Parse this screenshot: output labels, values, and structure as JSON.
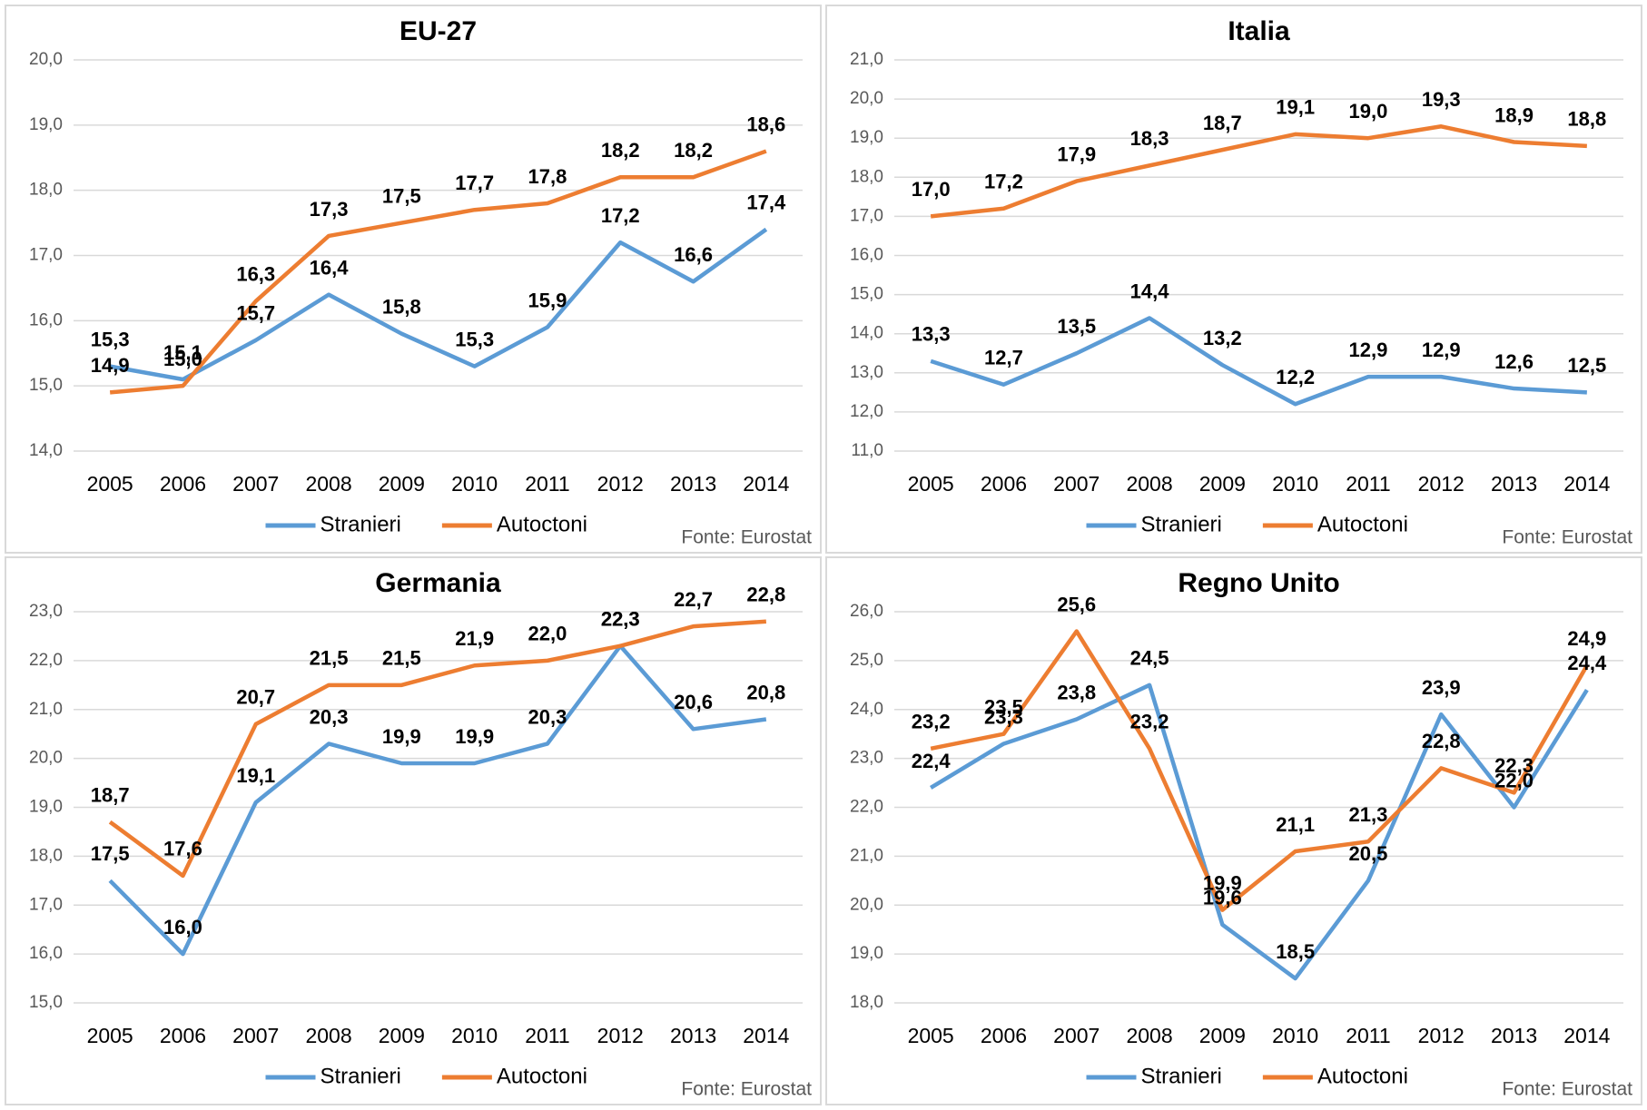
{
  "chart_data": [
    {
      "type": "line",
      "title": "EU-27",
      "source": "Fonte: Eurostat",
      "categories": [
        "2005",
        "2006",
        "2007",
        "2008",
        "2009",
        "2010",
        "2011",
        "2012",
        "2013",
        "2014"
      ],
      "ylim": [
        14,
        20
      ],
      "yticks": [
        {
          "value": 14,
          "label": "14,0"
        },
        {
          "value": 15,
          "label": "15,0"
        },
        {
          "value": 16,
          "label": "16,0"
        },
        {
          "value": 17,
          "label": "17,0"
        },
        {
          "value": 18,
          "label": "18,0"
        },
        {
          "value": 19,
          "label": "19,0"
        },
        {
          "value": 20,
          "label": "20,0"
        }
      ],
      "grid": true,
      "series": [
        {
          "name": "Stranieri",
          "color": "#5b9bd5",
          "values": [
            15.3,
            15.1,
            15.7,
            16.4,
            15.8,
            15.3,
            15.9,
            17.2,
            16.6,
            17.4
          ],
          "value_labels": [
            "15,3",
            "15,1",
            "15,7",
            "16,4",
            "15,8",
            "15,3",
            "15,9",
            "17,2",
            "16,6",
            "17,4"
          ]
        },
        {
          "name": "Autoctoni",
          "color": "#ed7d31",
          "values": [
            14.9,
            15.0,
            16.3,
            17.3,
            17.5,
            17.7,
            17.8,
            18.2,
            18.2,
            18.6
          ],
          "value_labels": [
            "14,9",
            "15,0",
            "16,3",
            "17,3",
            "17,5",
            "17,7",
            "17,8",
            "18,2",
            "18,2",
            "18,6"
          ]
        }
      ]
    },
    {
      "type": "line",
      "title": "Italia",
      "source": "Fonte: Eurostat",
      "categories": [
        "2005",
        "2006",
        "2007",
        "2008",
        "2009",
        "2010",
        "2011",
        "2012",
        "2013",
        "2014"
      ],
      "ylim": [
        11,
        21
      ],
      "yticks": [
        {
          "value": 11,
          "label": "11,0"
        },
        {
          "value": 12,
          "label": "12,0"
        },
        {
          "value": 13,
          "label": "13,0"
        },
        {
          "value": 14,
          "label": "14,0"
        },
        {
          "value": 15,
          "label": "15,0"
        },
        {
          "value": 16,
          "label": "16,0"
        },
        {
          "value": 17,
          "label": "17,0"
        },
        {
          "value": 18,
          "label": "18,0"
        },
        {
          "value": 19,
          "label": "19,0"
        },
        {
          "value": 20,
          "label": "20,0"
        },
        {
          "value": 21,
          "label": "21,0"
        }
      ],
      "grid": true,
      "series": [
        {
          "name": "Stranieri",
          "color": "#5b9bd5",
          "values": [
            13.3,
            12.7,
            13.5,
            14.4,
            13.2,
            12.2,
            12.9,
            12.9,
            12.6,
            12.5
          ],
          "value_labels": [
            "13,3",
            "12,7",
            "13,5",
            "14,4",
            "13,2",
            "12,2",
            "12,9",
            "12,9",
            "12,6",
            "12,5"
          ]
        },
        {
          "name": "Autoctoni",
          "color": "#ed7d31",
          "values": [
            17.0,
            17.2,
            17.9,
            18.3,
            18.7,
            19.1,
            19.0,
            19.3,
            18.9,
            18.8
          ],
          "value_labels": [
            "17,0",
            "17,2",
            "17,9",
            "18,3",
            "18,7",
            "19,1",
            "19,0",
            "19,3",
            "18,9",
            "18,8"
          ]
        }
      ]
    },
    {
      "type": "line",
      "title": "Germania",
      "source": "Fonte: Eurostat",
      "categories": [
        "2005",
        "2006",
        "2007",
        "2008",
        "2009",
        "2010",
        "2011",
        "2012",
        "2013",
        "2014"
      ],
      "ylim": [
        15,
        23
      ],
      "yticks": [
        {
          "value": 15,
          "label": "15,0"
        },
        {
          "value": 16,
          "label": "16,0"
        },
        {
          "value": 17,
          "label": "17,0"
        },
        {
          "value": 18,
          "label": "18,0"
        },
        {
          "value": 19,
          "label": "19,0"
        },
        {
          "value": 20,
          "label": "20,0"
        },
        {
          "value": 21,
          "label": "21,0"
        },
        {
          "value": 22,
          "label": "22,0"
        },
        {
          "value": 23,
          "label": "23,0"
        }
      ],
      "grid": true,
      "series": [
        {
          "name": "Stranieri",
          "color": "#5b9bd5",
          "values": [
            17.5,
            16.0,
            19.1,
            20.3,
            19.9,
            19.9,
            20.3,
            22.3,
            20.6,
            20.8
          ],
          "value_labels": [
            "17,5",
            "16,0",
            "19,1",
            "20,3",
            "19,9",
            "19,9",
            "20,3",
            "22,3",
            "20,6",
            "20,8"
          ]
        },
        {
          "name": "Autoctoni",
          "color": "#ed7d31",
          "values": [
            18.7,
            17.6,
            20.7,
            21.5,
            21.5,
            21.9,
            22.0,
            22.3,
            22.7,
            22.8
          ],
          "value_labels": [
            "18,7",
            "17,6",
            "20,7",
            "21,5",
            "21,5",
            "21,9",
            "22,0",
            "22,3",
            "22,7",
            "22,8"
          ]
        }
      ]
    },
    {
      "type": "line",
      "title": "Regno Unito",
      "source": "Fonte: Eurostat",
      "categories": [
        "2005",
        "2006",
        "2007",
        "2008",
        "2009",
        "2010",
        "2011",
        "2012",
        "2013",
        "2014"
      ],
      "ylim": [
        18,
        26
      ],
      "yticks": [
        {
          "value": 18,
          "label": "18,0"
        },
        {
          "value": 19,
          "label": "19,0"
        },
        {
          "value": 20,
          "label": "20,0"
        },
        {
          "value": 21,
          "label": "21,0"
        },
        {
          "value": 22,
          "label": "22,0"
        },
        {
          "value": 23,
          "label": "23,0"
        },
        {
          "value": 24,
          "label": "24,0"
        },
        {
          "value": 25,
          "label": "25,0"
        },
        {
          "value": 26,
          "label": "26,0"
        }
      ],
      "grid": true,
      "series": [
        {
          "name": "Stranieri",
          "color": "#5b9bd5",
          "values": [
            22.4,
            23.3,
            23.8,
            24.5,
            19.6,
            18.5,
            20.5,
            23.9,
            22.0,
            24.4
          ],
          "value_labels": [
            "22,4",
            "23,3",
            "23,8",
            "24,5",
            "19,6",
            "18,5",
            "20,5",
            "23,9",
            "22,0",
            "24,4"
          ]
        },
        {
          "name": "Autoctoni",
          "color": "#ed7d31",
          "values": [
            23.2,
            23.5,
            25.6,
            23.2,
            19.9,
            21.1,
            21.3,
            22.8,
            22.3,
            24.9
          ],
          "value_labels": [
            "23,2",
            "23,5",
            "25,6",
            "23,2",
            "19,9",
            "21,1",
            "21,3",
            "22,8",
            "22,3",
            "24,9"
          ]
        }
      ]
    }
  ]
}
